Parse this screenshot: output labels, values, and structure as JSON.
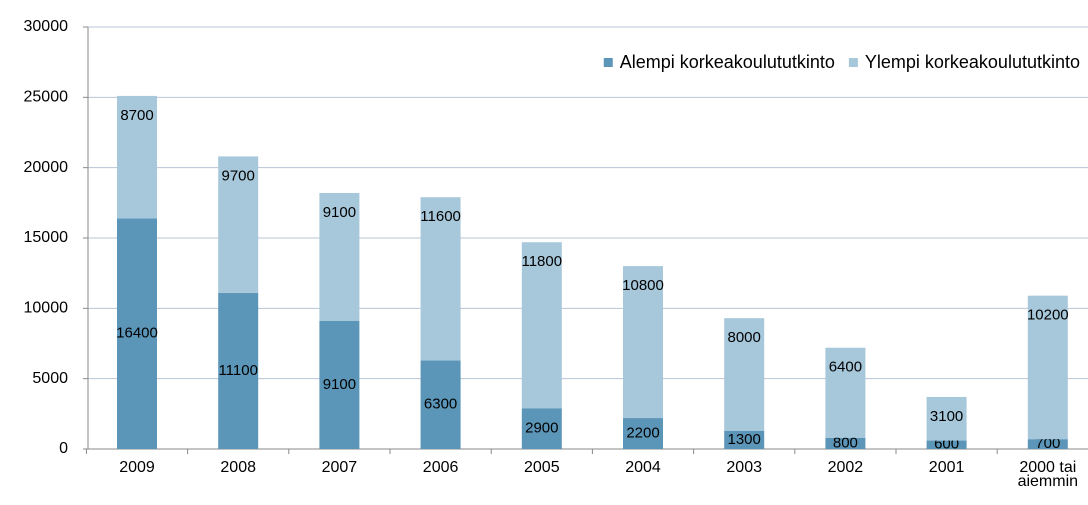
{
  "chart_data": {
    "type": "stacked_bar",
    "categories": [
      "2009",
      "2008",
      "2007",
      "2006",
      "2005",
      "2004",
      "2003",
      "2002",
      "2001",
      "2000 tai aiemmin"
    ],
    "series": [
      {
        "name": "Alempi korkeakoulututkinto",
        "color": "#5b96b9",
        "values": [
          16400,
          11100,
          9100,
          6300,
          2900,
          2200,
          1300,
          800,
          600,
          700
        ]
      },
      {
        "name": "Ylempi korkeakoulututkinto",
        "color": "#a7c7da",
        "values": [
          8700,
          9700,
          9100,
          11600,
          11800,
          10800,
          8000,
          6400,
          3100,
          10200
        ]
      }
    ],
    "ylim": [
      0,
      30000
    ],
    "yticks": [
      0,
      5000,
      10000,
      15000,
      20000,
      25000,
      30000
    ],
    "grid": true,
    "legend": "top-right"
  }
}
